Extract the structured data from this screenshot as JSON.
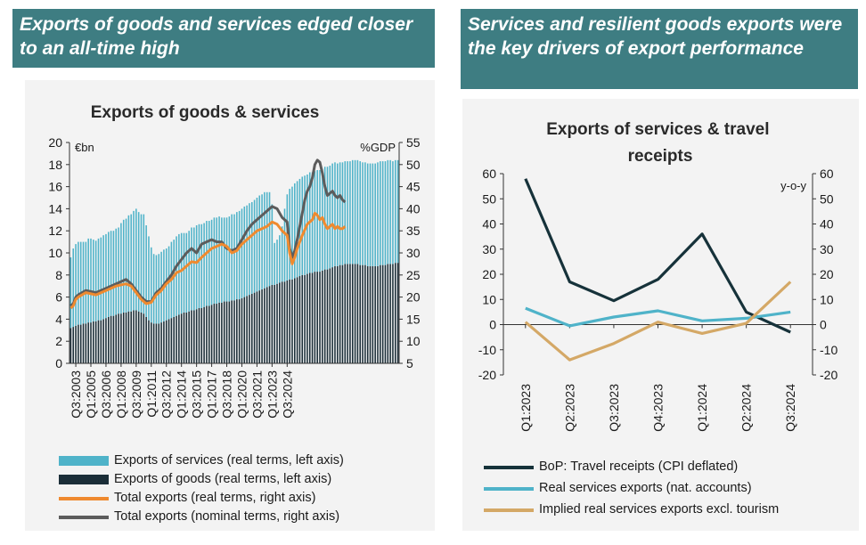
{
  "left_heading": "Exports of goods and services edged closer to an all-time high",
  "right_heading": "Services and resilient goods exports were the key drivers of export performance",
  "chart_data": [
    {
      "type": "bar",
      "title": "Exports of goods & services",
      "left_unit": "€bn",
      "right_unit": "%GDP",
      "ylim": [
        0,
        20
      ],
      "y_ticks": [
        "0",
        "2",
        "4",
        "6",
        "8",
        "10",
        "12",
        "14",
        "16",
        "18",
        "20"
      ],
      "y2lim": [
        5,
        55
      ],
      "y2_ticks": [
        "5",
        "10",
        "15",
        "20",
        "25",
        "30",
        "35",
        "40",
        "45",
        "50",
        "55"
      ],
      "x_tick_labels": [
        "Q3:2003",
        "Q1:2005",
        "Q3:2006",
        "Q1:2008",
        "Q3:2009",
        "Q1:2011",
        "Q3:2012",
        "Q1:2014",
        "Q3:2015",
        "Q1:2017",
        "Q3:2018",
        "Q1:2020",
        "Q3:2021",
        "Q1:2023",
        "Q3:2024"
      ],
      "x_start": "Q1:2003",
      "x_end": "Q3:2024",
      "stacked": true,
      "legend_position": "bottom",
      "series": [
        {
          "name": "Exports of services (real terms, left axis)",
          "axis": "left",
          "kind": "bar",
          "color": "#4fb3c9",
          "values": [
            6.4,
            7.1,
            7.4,
            7.5,
            7.5,
            7.4,
            7.4,
            7.6,
            7.6,
            7.4,
            7.3,
            7.4,
            7.5,
            7.6,
            7.6,
            7.7,
            7.7,
            7.7,
            7.8,
            7.8,
            8.2,
            8.4,
            8.5,
            8.7,
            8.8,
            9.0,
            9.2,
            9.0,
            8.9,
            9.0,
            8.3,
            7.6,
            6.8,
            6.3,
            6.2,
            6.3,
            6.4,
            6.5,
            6.5,
            6.6,
            6.9,
            7.0,
            7.2,
            7.3,
            7.3,
            7.2,
            7.2,
            7.3,
            7.5,
            7.5,
            7.6,
            7.6,
            7.6,
            7.6,
            7.7,
            7.7,
            7.7,
            7.8,
            7.8,
            7.8,
            7.7,
            7.6,
            7.6,
            7.7,
            7.8,
            7.8,
            7.9,
            8.0,
            8.1,
            8.2,
            8.2,
            8.3,
            8.3,
            8.4,
            8.5,
            8.6,
            8.6,
            8.7,
            8.6,
            8.5,
            7.3,
            3.8,
            4.0,
            4.3,
            5.0,
            6.6,
            7.8,
            8.2,
            8.4,
            8.6,
            8.7,
            8.8,
            8.9,
            9.0,
            9.0,
            9.1,
            9.1,
            9.1,
            9.2,
            9.2,
            9.2,
            9.3,
            9.3,
            9.3,
            9.4,
            9.4,
            9.3,
            9.3,
            9.3,
            9.3,
            9.3,
            9.3,
            9.4,
            9.4,
            9.4,
            9.4,
            9.3,
            9.3,
            9.3,
            9.3,
            9.3,
            9.3,
            9.4,
            9.4,
            9.4,
            9.4,
            9.4,
            9.4,
            9.3,
            9.3,
            9.3
          ]
        },
        {
          "name": "Exports of goods (real terms, left axis)",
          "axis": "left",
          "kind": "bar",
          "color": "#1b2e38",
          "values": [
            3.2,
            3.3,
            3.4,
            3.5,
            3.5,
            3.6,
            3.6,
            3.7,
            3.7,
            3.8,
            3.8,
            3.9,
            3.9,
            4.0,
            4.1,
            4.2,
            4.3,
            4.3,
            4.4,
            4.5,
            4.5,
            4.6,
            4.6,
            4.7,
            4.7,
            4.8,
            4.8,
            4.7,
            4.6,
            4.5,
            4.2,
            3.9,
            3.7,
            3.6,
            3.6,
            3.6,
            3.7,
            3.8,
            3.9,
            4.0,
            4.1,
            4.2,
            4.3,
            4.4,
            4.5,
            4.6,
            4.6,
            4.7,
            4.8,
            4.8,
            4.9,
            5.0,
            5.0,
            5.1,
            5.2,
            5.2,
            5.3,
            5.4,
            5.4,
            5.5,
            5.5,
            5.6,
            5.6,
            5.6,
            5.7,
            5.7,
            5.8,
            5.8,
            5.9,
            6.0,
            6.1,
            6.2,
            6.3,
            6.4,
            6.5,
            6.6,
            6.7,
            6.8,
            6.9,
            7.0,
            7.1,
            7.1,
            7.2,
            7.3,
            7.4,
            7.4,
            7.5,
            7.6,
            7.6,
            7.7,
            7.8,
            7.9,
            8.0,
            8.0,
            8.1,
            8.2,
            8.2,
            8.3,
            8.3,
            8.3,
            8.4,
            8.5,
            8.5,
            8.6,
            8.7,
            8.8,
            8.8,
            8.9,
            8.9,
            9.0,
            9.0,
            9.0,
            9.0,
            9.0,
            9.0,
            8.9,
            8.9,
            8.9,
            8.8,
            8.8,
            8.8,
            8.8,
            8.8,
            8.9,
            8.9,
            8.9,
            9.0,
            9.0,
            9.0,
            9.1,
            9.1
          ]
        },
        {
          "name": "Total exports (real terms, right axis)",
          "axis": "right",
          "kind": "line",
          "color": "#ef8a2f",
          "points": [
            [
              0,
              17.5
            ],
            [
              1,
              18
            ],
            [
              2,
              19.5
            ],
            [
              3,
              20
            ],
            [
              6,
              21
            ],
            [
              10,
              20.5
            ],
            [
              14,
              21.5
            ],
            [
              18,
              22.5
            ],
            [
              22,
              23
            ],
            [
              24,
              22.5
            ],
            [
              28,
              19.5
            ],
            [
              30,
              18.5
            ],
            [
              32,
              18.8
            ],
            [
              34,
              20.5
            ],
            [
              36,
              21.5
            ],
            [
              38,
              23
            ],
            [
              40,
              24
            ],
            [
              42,
              25.5
            ],
            [
              44,
              26
            ],
            [
              46,
              27
            ],
            [
              48,
              28
            ],
            [
              50,
              27.8
            ],
            [
              52,
              29
            ],
            [
              54,
              30
            ],
            [
              56,
              31
            ],
            [
              58,
              31.5
            ],
            [
              60,
              32
            ],
            [
              62,
              31.5
            ],
            [
              64,
              30
            ],
            [
              66,
              30.5
            ],
            [
              68,
              32
            ],
            [
              70,
              33
            ],
            [
              72,
              34
            ],
            [
              74,
              35
            ],
            [
              76,
              35.5
            ],
            [
              78,
              36
            ],
            [
              80,
              37
            ],
            [
              82,
              36.5
            ],
            [
              84,
              35
            ],
            [
              86,
              34
            ],
            [
              87,
              30
            ],
            [
              88,
              27.5
            ],
            [
              89,
              29
            ],
            [
              90,
              31
            ],
            [
              92,
              34
            ],
            [
              94,
              36.5
            ],
            [
              95,
              37
            ],
            [
              96,
              37.5
            ],
            [
              97,
              39
            ],
            [
              98,
              38.5
            ],
            [
              99,
              37.5
            ],
            [
              100,
              38
            ],
            [
              101,
              36.5
            ],
            [
              102,
              35.5
            ],
            [
              103,
              36
            ],
            [
              104,
              36.5
            ],
            [
              105,
              35.5
            ],
            [
              106,
              36
            ],
            [
              107,
              35.5
            ],
            [
              108,
              35.5
            ],
            [
              109,
              36
            ]
          ]
        },
        {
          "name": "Total exports (nominal terms, right axis)",
          "axis": "right",
          "kind": "line",
          "color": "#5c5c5c",
          "points": [
            [
              0,
              18
            ],
            [
              1,
              18.5
            ],
            [
              2,
              20
            ],
            [
              3,
              20.5
            ],
            [
              6,
              21.5
            ],
            [
              10,
              21
            ],
            [
              14,
              22
            ],
            [
              18,
              23
            ],
            [
              22,
              24
            ],
            [
              24,
              23
            ],
            [
              28,
              20
            ],
            [
              30,
              19
            ],
            [
              32,
              19
            ],
            [
              34,
              21
            ],
            [
              36,
              22
            ],
            [
              38,
              23.5
            ],
            [
              40,
              25
            ],
            [
              42,
              27
            ],
            [
              44,
              28.5
            ],
            [
              46,
              30
            ],
            [
              48,
              31
            ],
            [
              50,
              30
            ],
            [
              52,
              32
            ],
            [
              54,
              32.5
            ],
            [
              56,
              33
            ],
            [
              58,
              32.5
            ],
            [
              60,
              32.5
            ],
            [
              62,
              31
            ],
            [
              64,
              30.5
            ],
            [
              66,
              31
            ],
            [
              68,
              33
            ],
            [
              70,
              35
            ],
            [
              72,
              36.5
            ],
            [
              74,
              37.5
            ],
            [
              76,
              38.5
            ],
            [
              78,
              39.5
            ],
            [
              80,
              40.5
            ],
            [
              82,
              40
            ],
            [
              84,
              38
            ],
            [
              86,
              37
            ],
            [
              87,
              31
            ],
            [
              88,
              29
            ],
            [
              89,
              30.5
            ],
            [
              90,
              33
            ],
            [
              92,
              39
            ],
            [
              93,
              42
            ],
            [
              94,
              44
            ],
            [
              95,
              45
            ],
            [
              96,
              47
            ],
            [
              97,
              50
            ],
            [
              98,
              51
            ],
            [
              99,
              50.5
            ],
            [
              100,
              48
            ],
            [
              101,
              45
            ],
            [
              102,
              43
            ],
            [
              103,
              43.5
            ],
            [
              104,
              44
            ],
            [
              105,
              43
            ],
            [
              106,
              42.5
            ],
            [
              107,
              43
            ],
            [
              108,
              42
            ],
            [
              109,
              41.5
            ]
          ]
        }
      ]
    },
    {
      "type": "line",
      "title": "Exports of services & travel receipts",
      "right_unit": "y-o-y",
      "categories": [
        "Q1:2023",
        "Q2:2023",
        "Q3:2023",
        "Q4:2023",
        "Q1:2024",
        "Q2:2024",
        "Q3:2024"
      ],
      "ylim": [
        -20,
        60
      ],
      "y_ticks": [
        "-20",
        "-10",
        "0",
        "10",
        "20",
        "30",
        "40",
        "50",
        "60"
      ],
      "legend_position": "bottom",
      "series": [
        {
          "name": "BoP: Travel receipts (CPI deflated)",
          "color": "#16323a",
          "values": [
            58,
            17,
            9.5,
            18,
            36,
            5,
            -3
          ]
        },
        {
          "name": "Real services exports (nat. accounts)",
          "color": "#4fb3c9",
          "values": [
            6.5,
            -0.5,
            3,
            5.5,
            1.5,
            2.5,
            5
          ]
        },
        {
          "name": "Implied real services exports excl. tourism",
          "color": "#d4a866",
          "values": [
            1,
            -14,
            -7.5,
            1,
            -3.5,
            0.5,
            17
          ]
        }
      ]
    }
  ]
}
